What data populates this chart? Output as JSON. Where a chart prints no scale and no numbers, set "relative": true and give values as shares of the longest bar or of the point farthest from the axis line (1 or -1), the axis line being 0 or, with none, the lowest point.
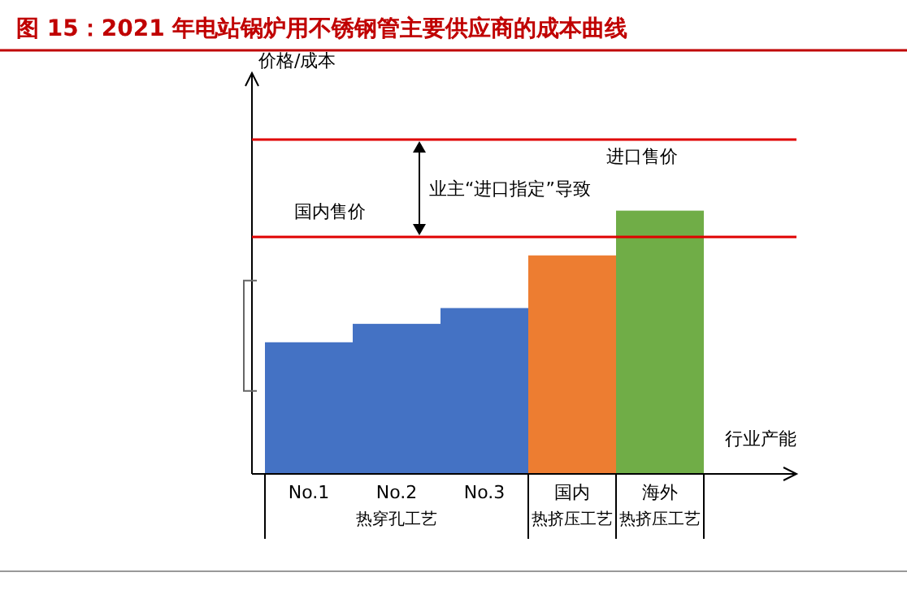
{
  "chart_data": {
    "type": "bar",
    "relative": true,
    "title": "图 15：2021 年电站锅炉用不锈钢管主要供应商的成本曲线",
    "xlabel": "行业产能",
    "categories": [
      "No.1",
      "No.2",
      "No.3",
      "国内",
      "海外"
    ],
    "values": [
      0.5,
      0.57,
      0.63,
      0.83,
      1
    ],
    "colors": [
      "#4472c4",
      "#4472c4",
      "#4472c4",
      "#ed7d31",
      "#70ad47"
    ],
    "ref_lines": [
      {
        "axis": "y",
        "value": 0.9,
        "label": "国内售价",
        "color": "#e00000"
      },
      {
        "axis": "y",
        "value": 1.27,
        "label": "进口售价",
        "color": "#e00000"
      }
    ],
    "annotations": [
      "价格/成本",
      "热穿孔工艺",
      "热挤压工艺",
      "热挤压工艺",
      "业主“进口指定”导致"
    ]
  }
}
